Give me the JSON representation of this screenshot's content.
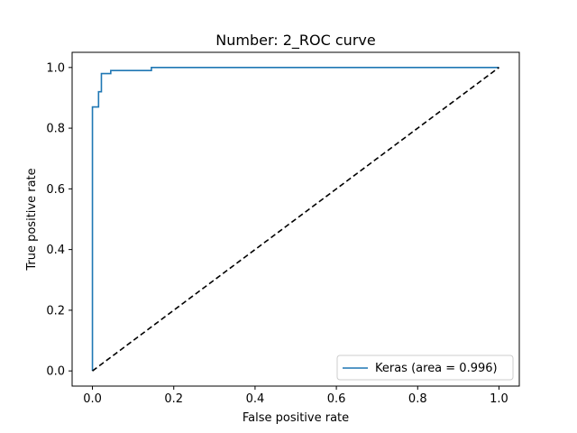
{
  "chart_data": {
    "type": "line",
    "title": "Number:  2_ROC curve",
    "xlabel": "False positive rate",
    "ylabel": "True positive rate",
    "xlim": [
      -0.05,
      1.05
    ],
    "ylim": [
      -0.05,
      1.05
    ],
    "xticks": [
      0.0,
      0.2,
      0.4,
      0.6,
      0.8,
      1.0
    ],
    "yticks": [
      0.0,
      0.2,
      0.4,
      0.6,
      0.8,
      1.0
    ],
    "tick_labels_x": [
      "0.0",
      "0.2",
      "0.4",
      "0.6",
      "0.8",
      "1.0"
    ],
    "tick_labels_y": [
      "0.0",
      "0.2",
      "0.4",
      "0.6",
      "0.8",
      "1.0"
    ],
    "grid": false,
    "legend_position": "bottom-right",
    "series": [
      {
        "name": "Keras (area = 0.996)",
        "color": "#1f77b4",
        "style": "solid",
        "step": true,
        "x": [
          0.0,
          0.0,
          0.015,
          0.015,
          0.022,
          0.022,
          0.045,
          0.045,
          0.145,
          0.145,
          1.0
        ],
        "y": [
          0.0,
          0.87,
          0.87,
          0.92,
          0.92,
          0.98,
          0.98,
          0.99,
          0.99,
          1.0,
          1.0
        ]
      },
      {
        "name": "",
        "color": "#000000",
        "style": "dashed",
        "step": false,
        "x": [
          0.0,
          1.0
        ],
        "y": [
          0.0,
          1.0
        ]
      }
    ]
  }
}
